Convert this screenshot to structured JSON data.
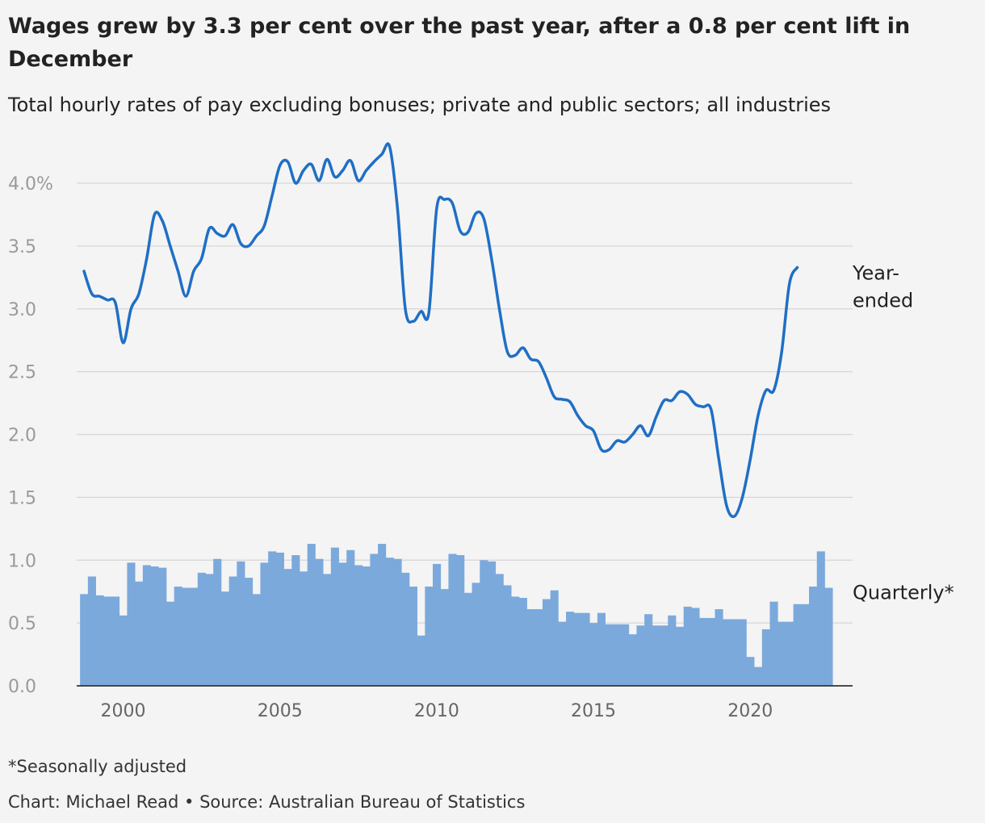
{
  "title": "Wages grew by 3.3 per cent over the past year, after a 0.8 per cent lift in December",
  "subtitle": "Total hourly rates of pay excluding bonuses; private and public sectors; all industries",
  "footnote": "*Seasonally adjusted",
  "credit": "Chart: Michael Read • Source: Australian Bureau of Statistics",
  "colors": {
    "line": "#1f6fc5",
    "bars": "#7ba9dc",
    "grid": "#d6d6d6",
    "axis": "#333333",
    "background": "#f4f4f4"
  },
  "chart_data": {
    "type": "bar",
    "title": "Wages grew by 3.3 per cent over the past year, after a 0.8 per cent lift in December",
    "subtitle": "Total hourly rates of pay excluding bonuses; private and public sectors; all industries",
    "xlim": [
      1998.5,
      2023.25
    ],
    "ylim": [
      0,
      4.0
    ],
    "grid": true,
    "y_ticks": [
      {
        "value": 0.0,
        "label": "0.0"
      },
      {
        "value": 0.5,
        "label": "0.5"
      },
      {
        "value": 1.0,
        "label": "1.0"
      },
      {
        "value": 1.5,
        "label": "1.5"
      },
      {
        "value": 2.0,
        "label": "2.0"
      },
      {
        "value": 2.5,
        "label": "2.5"
      },
      {
        "value": 3.0,
        "label": "3.0"
      },
      {
        "value": 3.5,
        "label": "3.5"
      },
      {
        "value": 4.0,
        "label": "4.0%"
      }
    ],
    "x_ticks": [
      {
        "value": 2000,
        "label": "2000"
      },
      {
        "value": 2005,
        "label": "2005"
      },
      {
        "value": 2010,
        "label": "2010"
      },
      {
        "value": 2015,
        "label": "2015"
      },
      {
        "value": 2020,
        "label": "2020"
      }
    ],
    "x_start": 1998.75,
    "x_step": 0.25,
    "series": [
      {
        "name": "Quarterly*",
        "type": "bar",
        "label": "Quarterly*",
        "values": [
          0.73,
          0.87,
          0.72,
          0.71,
          0.71,
          0.56,
          0.98,
          0.83,
          0.96,
          0.95,
          0.94,
          0.67,
          0.79,
          0.78,
          0.78,
          0.9,
          0.89,
          1.01,
          0.75,
          0.87,
          0.99,
          0.86,
          0.73,
          0.98,
          1.07,
          1.06,
          0.93,
          1.04,
          0.91,
          1.13,
          1.01,
          0.89,
          1.1,
          0.98,
          1.08,
          0.96,
          0.95,
          1.05,
          1.13,
          1.02,
          1.01,
          0.9,
          0.79,
          0.4,
          0.79,
          0.97,
          0.77,
          1.05,
          1.04,
          0.74,
          0.82,
          1.0,
          0.99,
          0.89,
          0.8,
          0.71,
          0.7,
          0.61,
          0.61,
          0.69,
          0.76,
          0.51,
          0.59,
          0.58,
          0.58,
          0.5,
          0.58,
          0.49,
          0.49,
          0.49,
          0.41,
          0.48,
          0.57,
          0.48,
          0.48,
          0.56,
          0.47,
          0.63,
          0.62,
          0.54,
          0.54,
          0.61,
          0.53,
          0.53,
          0.53,
          0.23,
          0.15,
          0.45,
          0.67,
          0.51,
          0.51,
          0.65,
          0.65,
          0.79,
          1.07,
          0.78
        ]
      },
      {
        "name": "Year-ended",
        "type": "line",
        "label_lines": [
          "Year-",
          "ended"
        ],
        "values": [
          3.3,
          3.12,
          3.1,
          3.07,
          3.05,
          2.73,
          3.0,
          3.12,
          3.4,
          3.75,
          3.7,
          3.5,
          3.3,
          3.1,
          3.3,
          3.4,
          3.64,
          3.6,
          3.58,
          3.67,
          3.52,
          3.5,
          3.58,
          3.66,
          3.9,
          4.14,
          4.17,
          4.0,
          4.1,
          4.15,
          4.02,
          4.19,
          4.05,
          4.1,
          4.18,
          4.02,
          4.1,
          4.17,
          4.23,
          4.29,
          3.8,
          3.0,
          2.9,
          2.98,
          2.97,
          3.8,
          3.87,
          3.84,
          3.62,
          3.61,
          3.76,
          3.72,
          3.4,
          3.0,
          2.66,
          2.63,
          2.69,
          2.6,
          2.58,
          2.45,
          2.3,
          2.28,
          2.26,
          2.15,
          2.07,
          2.03,
          1.88,
          1.88,
          1.95,
          1.94,
          2.0,
          2.07,
          1.99,
          2.14,
          2.27,
          2.27,
          2.34,
          2.32,
          2.24,
          2.22,
          2.2,
          1.8,
          1.43,
          1.35,
          1.5,
          1.8,
          2.15,
          2.35,
          2.35,
          2.65,
          3.2,
          3.33
        ]
      }
    ]
  }
}
